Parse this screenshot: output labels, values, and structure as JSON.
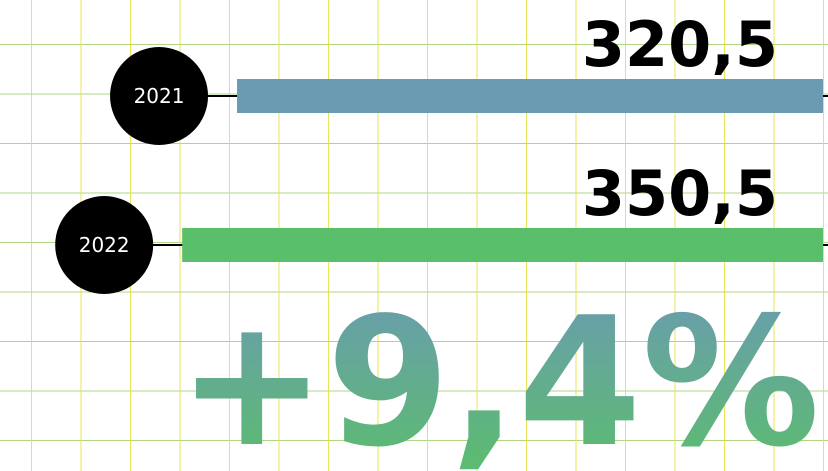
{
  "chart_data": {
    "type": "bar",
    "orientation": "horizontal",
    "categories": [
      "2021",
      "2022"
    ],
    "values": [
      320.5,
      350.5
    ],
    "value_labels": [
      "320,5",
      "350,5"
    ],
    "colors": [
      "#6b9ab3",
      "#5abf6a"
    ],
    "change_label": "+9,4%",
    "change_gradient": [
      "#6b9ab3",
      "#5abf6a"
    ],
    "title": "",
    "xlabel": "",
    "ylabel": "",
    "grid": true,
    "legend": "none"
  }
}
